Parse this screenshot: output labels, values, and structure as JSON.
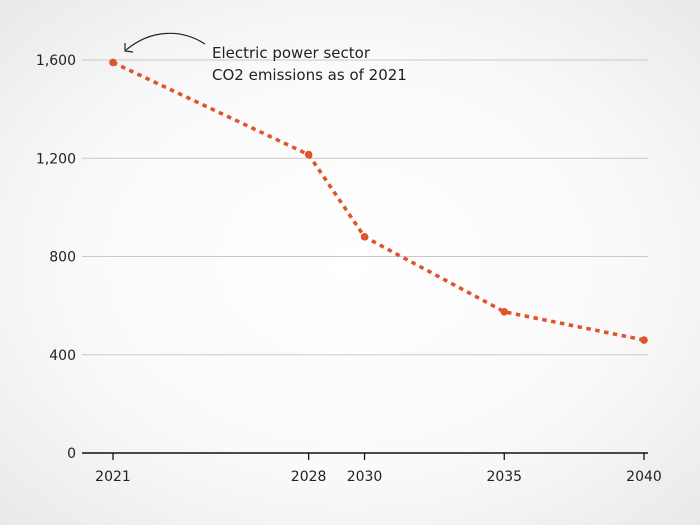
{
  "chart_data": {
    "type": "line",
    "title": "",
    "xlabel": "",
    "ylabel": "",
    "x": [
      2021,
      2028,
      2030,
      2035,
      2040
    ],
    "series": [
      {
        "values": [
          1590,
          1215,
          880,
          575,
          460
        ],
        "color": "#e0542b",
        "style": "dotted",
        "markers": true
      }
    ],
    "ylim": [
      0,
      1600
    ],
    "yticks": [
      0,
      400,
      800,
      1200,
      1600
    ],
    "ytick_labels": [
      "0",
      "400",
      "800",
      "1,200",
      "1,600"
    ],
    "xtick_labels": [
      "2021",
      "2028",
      "2030",
      "2035",
      "2040"
    ],
    "grid": "horizontal",
    "legend": "none",
    "annotation": {
      "lines": [
        "Electric power sector",
        "CO2 emissions as of 2021"
      ],
      "target_x": 2021
    }
  }
}
